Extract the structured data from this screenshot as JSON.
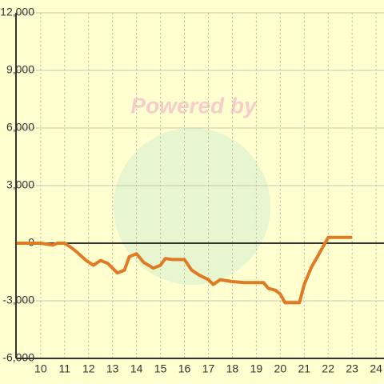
{
  "chart_data": {
    "type": "line",
    "watermark": "Powered by",
    "x": [
      9,
      10,
      10.5,
      10.7,
      11.0,
      11.3,
      11.5,
      11.9,
      12.2,
      12.5,
      12.8,
      13.2,
      13.5,
      13.7,
      14.0,
      14.3,
      14.7,
      15.0,
      15.2,
      15.5,
      16.0,
      16.3,
      16.6,
      17.0,
      17.2,
      17.5,
      18.0,
      18.5,
      19.3,
      19.5,
      19.8,
      20.0,
      20.2,
      20.8,
      21.0,
      21.3,
      21.6,
      22.0,
      23.0
    ],
    "series": [
      {
        "color": "#e07b24",
        "values": [
          0,
          0,
          -100,
          0,
          0,
          -250,
          -450,
          -900,
          -1150,
          -900,
          -1050,
          -1550,
          -1400,
          -700,
          -550,
          -1000,
          -1300,
          -1150,
          -800,
          -850,
          -850,
          -1400,
          -1650,
          -1900,
          -2150,
          -1900,
          -2000,
          -2050,
          -2050,
          -2350,
          -2450,
          -2650,
          -3100,
          -3100,
          -2150,
          -1250,
          -600,
          300,
          300
        ]
      }
    ],
    "xlim": [
      8.97,
      24.33
    ],
    "xticks": [
      10,
      11,
      12,
      13,
      14,
      15,
      16,
      17,
      18,
      19,
      20,
      21,
      22,
      23,
      24
    ],
    "ylim": [
      -6000,
      12000
    ],
    "yticks": [
      {
        "value": -6000,
        "label": "-6,000"
      },
      {
        "value": -3000,
        "label": "-3,000"
      },
      0,
      {
        "value": 3000,
        "label": "3,000"
      },
      {
        "value": 6000,
        "label": "6,000"
      },
      {
        "value": 9000,
        "label": "9,000"
      },
      {
        "value": 12000,
        "label": "12,000"
      }
    ],
    "grid": true
  }
}
